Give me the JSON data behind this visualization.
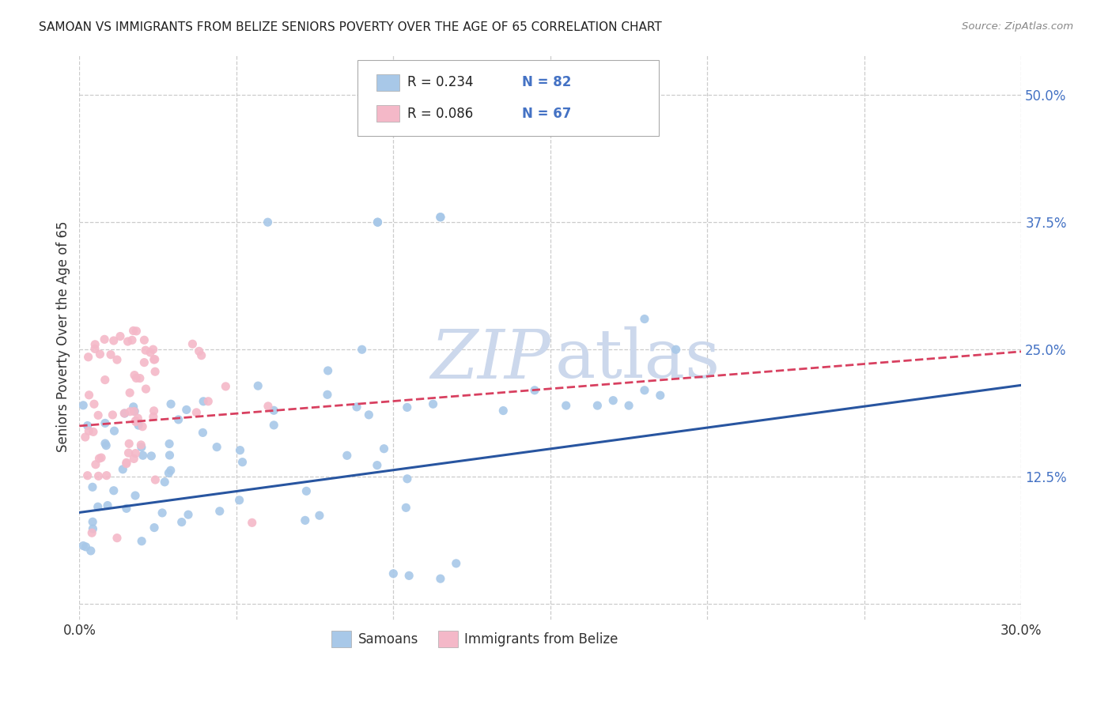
{
  "title": "SAMOAN VS IMMIGRANTS FROM BELIZE SENIORS POVERTY OVER THE AGE OF 65 CORRELATION CHART",
  "source": "Source: ZipAtlas.com",
  "ylabel_label": "Seniors Poverty Over the Age of 65",
  "legend_label1": "Samoans",
  "legend_label2": "Immigrants from Belize",
  "legend_r1": "R = 0.234",
  "legend_n1": "N = 82",
  "legend_r2": "R = 0.086",
  "legend_n2": "N = 67",
  "color_samoan": "#a8c8e8",
  "color_belize": "#f4b8c8",
  "color_samoan_line": "#2855a0",
  "color_belize_line": "#d84060",
  "color_axis_text": "#4472c4",
  "color_title": "#222222",
  "color_source": "#888888",
  "background_color": "#ffffff",
  "grid_color": "#cccccc",
  "watermark_zip": "ZIP",
  "watermark_atlas": "atlas",
  "watermark_color": "#ccd8ec",
  "xlim": [
    0.0,
    0.3
  ],
  "ylim": [
    -0.015,
    0.54
  ],
  "yticks": [
    0.0,
    0.125,
    0.25,
    0.375,
    0.5
  ],
  "ytick_strs": [
    "",
    "12.5%",
    "25.0%",
    "37.5%",
    "50.0%"
  ],
  "xticks": [
    0.0,
    0.05,
    0.1,
    0.15,
    0.2,
    0.25,
    0.3
  ],
  "xtick_strs": [
    "0.0%",
    "",
    "",
    "",
    "",
    "",
    "30.0%"
  ],
  "samoan_line_x": [
    0.0,
    0.3
  ],
  "samoan_line_y": [
    0.09,
    0.215
  ],
  "belize_line_x": [
    0.0,
    0.3
  ],
  "belize_line_y": [
    0.175,
    0.248
  ]
}
